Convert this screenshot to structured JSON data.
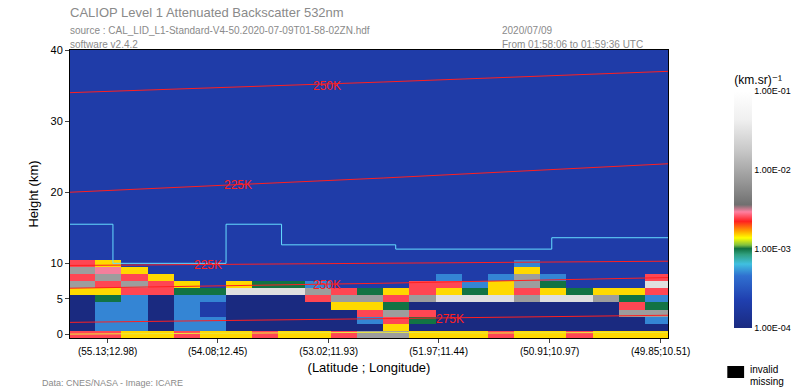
{
  "chart_data": {
    "type": "heatmap",
    "title": "CALIOP Level 1 Attenuated Backscatter 532nm",
    "subtitle": [
      "source : CAL_LID_L1-Standard-V4-50.2020-07-09T01-58-02ZN.hdf",
      "software v2.4.2"
    ],
    "time_labels": [
      "2020/07/09",
      "From 01:58:06 to 01:59:36 UTC"
    ],
    "credit": "Data: CNES/NASA - Image: ICARE",
    "missing_labels": [
      "invalid",
      "missing"
    ],
    "xlabel": "(Latitude ; Longitude)",
    "ylabel": "Height (km)",
    "colorbar_title": "(km.sr)⁻¹",
    "log": true,
    "grid": false,
    "xlim": [
      55.49,
      49.78
    ],
    "ylim": [
      -0.5,
      40
    ],
    "xticks": [
      {
        "value": 55.13,
        "label": "(55.13;12.98)"
      },
      {
        "value": 54.08,
        "label": "(54.08;12.45)"
      },
      {
        "value": 53.02,
        "label": "(53.02;11.93)"
      },
      {
        "value": 51.97,
        "label": "(51.97;11.44)"
      },
      {
        "value": 50.91,
        "label": "(50.91;10.97)"
      },
      {
        "value": 49.85,
        "label": "(49.85;10.51)"
      }
    ],
    "yticks": [
      0,
      5,
      10,
      20,
      30,
      40
    ],
    "colorbar_range": [
      0.0001,
      0.1
    ],
    "colorbar_ticks": [
      {
        "value": 0.0001,
        "label": "1.00E-04"
      },
      {
        "value": 0.001,
        "label": "1.00E-03"
      },
      {
        "value": 0.01,
        "label": "1.00E-02"
      },
      {
        "value": 0.1,
        "label": "1.00E-01"
      }
    ],
    "x_edges": [
      55.5,
      55.25,
      55,
      54.75,
      54.5,
      54.25,
      54,
      53.75,
      53.5,
      53.25,
      53,
      52.75,
      52.5,
      52.25,
      52,
      51.75,
      51.5,
      51.25,
      51,
      50.75,
      50.5,
      50.25,
      50,
      49.75
    ],
    "y_edges": [
      -0.5,
      0.5,
      1.5,
      2.5,
      3.5,
      4.5,
      5.5,
      6.5,
      7.5,
      8.5,
      9.5,
      10.5,
      11.5,
      12.5,
      16,
      20,
      30,
      40
    ],
    "cells": [
      [
        0.0025,
        0.0025,
        0.0015,
        0.0015,
        0.0025,
        0.0015,
        0.0015,
        0.0025,
        0.0015,
        0.0015,
        0.0025,
        0.008,
        0.008,
        0.0015,
        0.0015,
        0.0015,
        0.0025,
        0.0015,
        0.0015,
        0.0025,
        0.0015,
        0.0015,
        0.0015
      ],
      [
        5e-05,
        0.0005,
        0.0005,
        5e-05,
        0.0005,
        0.0005,
        5e-05,
        5e-05,
        5e-05,
        5e-05,
        5e-05,
        5e-05,
        0.0015,
        5e-05,
        5e-05,
        5e-05,
        5e-05,
        5e-05,
        5e-05,
        5e-05,
        5e-05,
        5e-05,
        5e-05
      ],
      [
        5e-05,
        0.0005,
        0.0005,
        5e-05,
        0.0005,
        0.0005,
        5e-05,
        5e-05,
        5e-05,
        5e-05,
        5e-05,
        0.0005,
        0.0025,
        0.001,
        5e-05,
        5e-05,
        5e-05,
        5e-05,
        5e-05,
        5e-05,
        5e-05,
        5e-05,
        0.0005
      ],
      [
        5e-05,
        0.0005,
        0.0005,
        5e-05,
        0.0005,
        0.0002,
        5e-05,
        5e-05,
        5e-05,
        5e-05,
        5e-05,
        0.0025,
        0.008,
        0.0025,
        5e-05,
        5e-05,
        5e-05,
        5e-05,
        5e-05,
        5e-05,
        5e-05,
        0.008,
        0.008
      ],
      [
        5e-05,
        0.0005,
        0.0005,
        5e-05,
        0.0005,
        0.0002,
        5e-05,
        5e-05,
        5e-05,
        5e-05,
        0.0015,
        0.0015,
        0.001,
        5e-05,
        5e-05,
        5e-05,
        5e-05,
        5e-05,
        5e-05,
        5e-05,
        5e-05,
        0.0025,
        0.001
      ],
      [
        5e-05,
        0.001,
        0.0005,
        5e-05,
        0.0005,
        0.0005,
        5e-05,
        5e-05,
        5e-05,
        0.0025,
        0.008,
        0.008,
        0.0025,
        0.008,
        0.03,
        0.03,
        0.03,
        0.008,
        0.03,
        0.03,
        0.008,
        0.001,
        0.0005
      ],
      [
        0.0015,
        0.0015,
        0.0025,
        0.0025,
        0.001,
        0.001,
        0.03,
        0.03,
        0.03,
        0.008,
        0.0025,
        0.001,
        0.0015,
        0.0025,
        0.0015,
        0.001,
        0.0015,
        0.0025,
        0.0015,
        0.001,
        0.0015,
        0.0015,
        0.0025
      ],
      [
        0.008,
        0.0025,
        0.008,
        0.0025,
        0.0015,
        0.0002,
        0.0015,
        0.001,
        0.001,
        0.0005,
        0.0002,
        0.0002,
        0.0002,
        0.0025,
        0.0025,
        0.0005,
        0.0015,
        0.008,
        0.001,
        0.0002,
        0.0002,
        0.0002,
        0.03
      ],
      [
        0.0025,
        0.008,
        0.0025,
        0.0015,
        0.0002,
        0.0002,
        0.0002,
        0.0002,
        0.0002,
        0.0002,
        0.0002,
        0.0002,
        0.0002,
        0.0002,
        0.0005,
        0.0002,
        0.0005,
        0.008,
        0.0005,
        0.0002,
        0.0002,
        0.0002,
        0.0025
      ],
      [
        0.008,
        0.003,
        0.0015,
        0.0002,
        0.0002,
        0.0002,
        0.0002,
        0.0002,
        0.0002,
        0.0002,
        0.0002,
        0.0002,
        0.0002,
        0.0002,
        0.0002,
        0.0002,
        0.0002,
        0.0015,
        0.0002,
        0.0002,
        0.0002,
        0.0002,
        0.0002
      ],
      [
        0.0025,
        0.0015,
        0.0002,
        0.0002,
        0.0002,
        0.0002,
        0.0002,
        0.0002,
        0.0002,
        0.0002,
        0.0002,
        0.0002,
        0.0002,
        0.0002,
        0.0002,
        0.0002,
        0.0002,
        0.0005,
        0.0002,
        0.0002,
        0.0002,
        0.0002,
        0.0002
      ],
      [
        0.0002,
        0.0002,
        0.0002,
        0.0002,
        0.0002,
        0.0002,
        0.0002,
        0.0002,
        0.0002,
        0.0002,
        0.0002,
        0.0002,
        0.0002,
        0.0002,
        0.0002,
        0.0002,
        0.0002,
        0.0002,
        0.0002,
        0.0002,
        0.0002,
        0.0002,
        0.0002
      ],
      [
        0.0002,
        0.0002,
        0.0002,
        0.0002,
        0.0002,
        0.0002,
        0.0002,
        0.0002,
        0.0002,
        0.0002,
        0.0002,
        0.0002,
        0.0002,
        0.0002,
        0.0002,
        0.0002,
        0.0002,
        0.0002,
        0.0002,
        0.0002,
        0.0002,
        0.0002,
        0.0002
      ],
      [
        0.0002,
        0.0002,
        0.0002,
        0.0002,
        0.0002,
        0.0002,
        0.0002,
        0.0002,
        0.0002,
        0.0002,
        0.0002,
        0.0002,
        0.0002,
        0.0002,
        0.0002,
        0.0002,
        0.0002,
        0.0002,
        0.0002,
        0.0002,
        0.0002,
        0.0002,
        0.0002
      ],
      [
        0.0002,
        0.0002,
        0.0002,
        0.0002,
        0.0002,
        0.0002,
        0.0002,
        0.0002,
        0.0002,
        0.0002,
        0.0002,
        0.0002,
        0.0002,
        0.0002,
        0.0002,
        0.0002,
        0.0002,
        0.0002,
        0.0002,
        0.0002,
        0.0002,
        0.0002,
        0.0002
      ],
      [
        0.0002,
        0.0002,
        0.0002,
        0.0002,
        0.0002,
        0.0002,
        0.0002,
        0.0002,
        0.0002,
        0.0002,
        0.0002,
        0.0002,
        0.0002,
        0.0002,
        0.0002,
        0.0002,
        0.0002,
        0.0002,
        0.0002,
        0.0002,
        0.0002,
        0.0002,
        0.0002
      ],
      [
        0.0002,
        0.0002,
        0.0002,
        0.0002,
        0.0002,
        0.0002,
        0.0002,
        0.0002,
        0.0002,
        0.0002,
        0.0002,
        0.0002,
        0.0002,
        0.0002,
        0.0002,
        0.0002,
        0.0002,
        0.0002,
        0.0002,
        0.0002,
        0.0002,
        0.0002,
        0.0002
      ]
    ],
    "series": [
      {
        "type": "line",
        "color": "#ff2020",
        "line_style": "solid",
        "label": "250K",
        "label_x": 53.04,
        "label_y": 35,
        "x": [
          55.49,
          52.5,
          49.78
        ],
        "y": [
          34,
          35.5,
          37
        ]
      },
      {
        "type": "line",
        "color": "#ff2020",
        "line_style": "solid",
        "label": "225K",
        "label_x": 53.89,
        "label_y": 21,
        "x": [
          55.49,
          52.5,
          49.78
        ],
        "y": [
          20,
          22,
          24
        ]
      },
      {
        "type": "line",
        "color": "#ff2020",
        "line_style": "solid",
        "label": "225K",
        "label_x": 54.17,
        "label_y": 9.8,
        "x": [
          55.49,
          52.5,
          49.78
        ],
        "y": [
          9.7,
          10,
          10.3
        ]
      },
      {
        "type": "line",
        "color": "#ff2020",
        "line_style": "solid",
        "label": "250K",
        "label_x": 53.04,
        "label_y": 7,
        "x": [
          55.49,
          52.5,
          49.78
        ],
        "y": [
          6.5,
          7.2,
          8
        ]
      },
      {
        "type": "line",
        "color": "#ff2020",
        "line_style": "solid",
        "label": "275K",
        "label_x": 51.86,
        "label_y": 2.2,
        "x": [
          55.49,
          52.5,
          49.78
        ],
        "y": [
          1.7,
          2.2,
          2.7
        ]
      },
      {
        "type": "line",
        "color": "#66ddff",
        "line_style": "solid",
        "x": [
          55.49,
          55.08,
          55.08,
          54.0,
          54.0,
          53.47,
          53.47,
          52.38,
          52.38,
          50.89,
          50.89,
          49.78
        ],
        "y": [
          15.5,
          15.5,
          10,
          10,
          15.5,
          15.5,
          12.6,
          12.6,
          12.0,
          12.0,
          13.6,
          13.6
        ]
      },
      {
        "type": "line",
        "color": "#e8e840",
        "line_style": "solid",
        "x": [
          55.49,
          54.5,
          53.5,
          52.5,
          51.5,
          50.5,
          49.78
        ],
        "y": [
          0.05,
          0.1,
          0.2,
          0.3,
          0.2,
          0.3,
          0.3
        ]
      }
    ]
  }
}
